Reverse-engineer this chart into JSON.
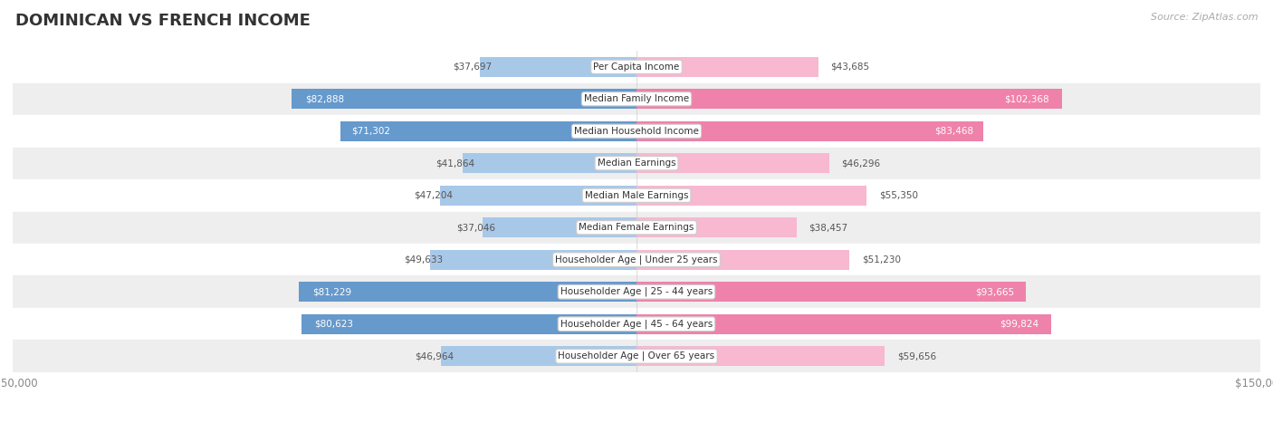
{
  "title": "DOMINICAN VS FRENCH INCOME",
  "source": "Source: ZipAtlas.com",
  "categories": [
    "Per Capita Income",
    "Median Family Income",
    "Median Household Income",
    "Median Earnings",
    "Median Male Earnings",
    "Median Female Earnings",
    "Householder Age | Under 25 years",
    "Householder Age | 25 - 44 years",
    "Householder Age | 45 - 64 years",
    "Householder Age | Over 65 years"
  ],
  "dominican": [
    37697,
    82888,
    71302,
    41864,
    47204,
    37046,
    49633,
    81229,
    80623,
    46964
  ],
  "french": [
    43685,
    102368,
    83468,
    46296,
    55350,
    38457,
    51230,
    93665,
    99824,
    59656
  ],
  "max_val": 150000,
  "color_dominican_light": "#a8c8e8",
  "color_dominican_dark": "#6699cc",
  "color_french_light": "#f7b8d0",
  "color_french_dark": "#ee82aa",
  "bar_height": 0.62,
  "bg_row_white": "#ffffff",
  "bg_row_light": "#eeeeee",
  "label_bg": "#ffffff",
  "label_border": "#cccccc",
  "axis_label_color": "#888888",
  "title_color": "#333333",
  "value_color_dark": "#555555",
  "value_color_white": "#ffffff",
  "threshold_white_label": 65000
}
